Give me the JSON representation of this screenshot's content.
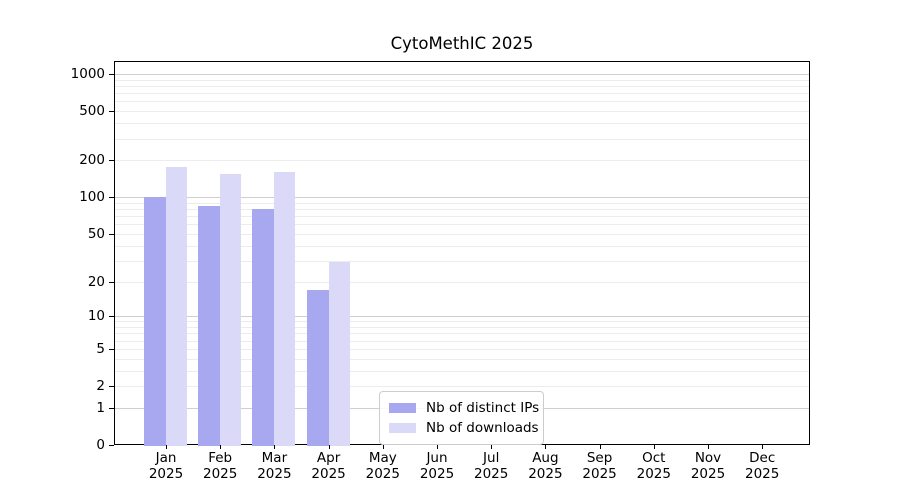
{
  "title": "CytoMethIC 2025",
  "colors": {
    "bar_distinct_ips": "#a8a8f0",
    "bar_downloads": "#dadaf8",
    "grid_major": "#cfcfcf",
    "grid_minor": "#ececec",
    "spine": "#000000"
  },
  "legend": {
    "items": [
      {
        "label": "Nb of distinct IPs",
        "color": "#a8a8f0"
      },
      {
        "label": "Nb of downloads",
        "color": "#dadaf8"
      }
    ]
  },
  "y_axis": {
    "tick_values": [
      0,
      1,
      2,
      5,
      10,
      20,
      50,
      100,
      200,
      500,
      1000
    ],
    "tick_labels": [
      "0",
      "1",
      "2",
      "5",
      "10",
      "20",
      "50",
      "100",
      "200",
      "500",
      "1000"
    ]
  },
  "x_axis": {
    "year": "2025",
    "months": [
      "Jan",
      "Feb",
      "Mar",
      "Apr",
      "May",
      "Jun",
      "Jul",
      "Aug",
      "Sep",
      "Oct",
      "Nov",
      "Dec"
    ]
  },
  "chart_data": {
    "type": "bar",
    "title": "CytoMethIC 2025",
    "categories": [
      "Jan 2025",
      "Feb 2025",
      "Mar 2025",
      "Apr 2025",
      "May 2025",
      "Jun 2025",
      "Jul 2025",
      "Aug 2025",
      "Sep 2025",
      "Oct 2025",
      "Nov 2025",
      "Dec 2025"
    ],
    "series": [
      {
        "name": "Nb of distinct IPs",
        "color": "#a8a8f0",
        "values": [
          100,
          84,
          80,
          17,
          0,
          0,
          0,
          0,
          0,
          0,
          0,
          0
        ]
      },
      {
        "name": "Nb of downloads",
        "color": "#dadaf8",
        "values": [
          175,
          155,
          161,
          29,
          0,
          0,
          0,
          0,
          0,
          0,
          0,
          0
        ]
      }
    ],
    "xlabel": "",
    "ylabel": "",
    "y_scale": "log-like (log10(1+v))",
    "y_ticks": [
      0,
      1,
      2,
      5,
      10,
      20,
      50,
      100,
      200,
      500,
      1000
    ],
    "ylim": [
      0,
      1000
    ],
    "grid": "horizontal major (decades) + minor (2-9 per decade)",
    "legend_position": "lower center inside plot"
  }
}
